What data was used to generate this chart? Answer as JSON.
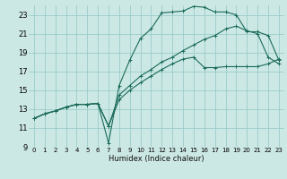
{
  "xlabel": "Humidex (Indice chaleur)",
  "bg_color": "#cce8e4",
  "grid_color": "#99cccc",
  "line_color": "#1a6b5a",
  "xlim": [
    -0.5,
    23.5
  ],
  "ylim": [
    9,
    24
  ],
  "xticks": [
    0,
    1,
    2,
    3,
    4,
    5,
    6,
    7,
    8,
    9,
    10,
    11,
    12,
    13,
    14,
    15,
    16,
    17,
    18,
    19,
    20,
    21,
    22,
    23
  ],
  "yticks": [
    9,
    11,
    13,
    15,
    17,
    19,
    21,
    23
  ],
  "line1_x": [
    0,
    1,
    2,
    3,
    4,
    5,
    6,
    7,
    8,
    9,
    10,
    11,
    12,
    13,
    14,
    15,
    16,
    17,
    18,
    19,
    20,
    21,
    22,
    23
  ],
  "line1_y": [
    12,
    12.5,
    12.8,
    13.2,
    13.5,
    13.5,
    13.6,
    11.2,
    14.0,
    15.0,
    15.8,
    16.5,
    17.2,
    17.8,
    18.3,
    18.5,
    17.4,
    17.4,
    17.5,
    17.5,
    17.5,
    17.5,
    17.8,
    18.3
  ],
  "line2_x": [
    0,
    1,
    2,
    3,
    4,
    5,
    6,
    7,
    8,
    9,
    10,
    11,
    12,
    13,
    14,
    15,
    16,
    17,
    18,
    19,
    20,
    21,
    22,
    23
  ],
  "line2_y": [
    12,
    12.5,
    12.8,
    13.2,
    13.5,
    13.5,
    13.6,
    9.4,
    15.5,
    18.2,
    20.5,
    21.5,
    23.2,
    23.3,
    23.4,
    23.9,
    23.8,
    23.3,
    23.3,
    23.0,
    21.2,
    21.2,
    20.8,
    18.2
  ],
  "line3_x": [
    0,
    1,
    2,
    3,
    4,
    5,
    6,
    7,
    8,
    9,
    10,
    11,
    12,
    13,
    14,
    15,
    16,
    17,
    18,
    19,
    20,
    21,
    22,
    23
  ],
  "line3_y": [
    12,
    12.5,
    12.8,
    13.2,
    13.5,
    13.5,
    13.6,
    11.2,
    14.5,
    15.5,
    16.5,
    17.2,
    18.0,
    18.5,
    19.2,
    19.8,
    20.4,
    20.8,
    21.5,
    21.8,
    21.3,
    21.0,
    18.5,
    17.8
  ]
}
